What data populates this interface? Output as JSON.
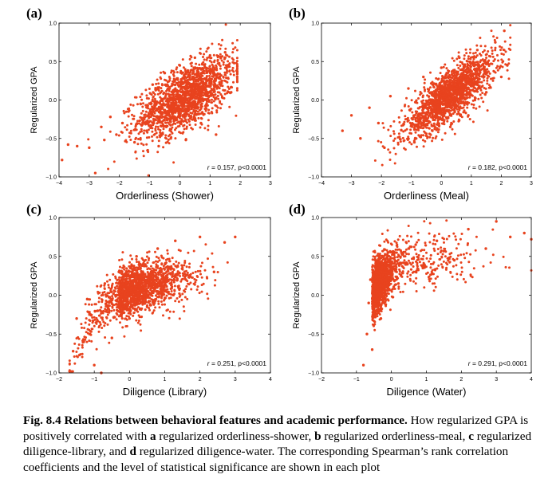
{
  "chart_data": [
    {
      "type": "scatter",
      "panel": "(a)",
      "xlabel": "Orderliness (Shower)",
      "ylabel": "Regularized GPA",
      "xlim": [
        -4,
        3
      ],
      "ylim": [
        -1.0,
        1.0
      ],
      "xticks": [
        "−4",
        "−3",
        "−2",
        "−1",
        "0",
        "1",
        "2",
        "3"
      ],
      "yticks": [
        "1.0",
        "0.5",
        "0.0",
        "−0.5",
        "−1.0"
      ],
      "annotation_r": "r",
      "annotation_text": " = 0.157, p<0.0001",
      "color": "#e8431e",
      "points": [
        [
          -3.9,
          -0.78
        ],
        [
          -3.7,
          -0.58
        ],
        [
          -3.4,
          -0.6
        ],
        [
          -3.0,
          -0.62
        ],
        [
          -2.8,
          -0.95
        ],
        [
          -2.6,
          -0.35
        ],
        [
          -2.5,
          -0.52
        ],
        [
          -2.3,
          -0.22
        ],
        [
          -2.1,
          -0.45
        ],
        [
          -1.9,
          -0.3
        ],
        [
          -1.7,
          -0.15
        ],
        [
          -1.5,
          -0.55
        ],
        [
          -1.3,
          -0.05
        ],
        [
          -1.1,
          -0.4
        ],
        [
          -0.9,
          0.2
        ],
        [
          -0.7,
          -0.6
        ],
        [
          -0.5,
          0.35
        ],
        [
          -0.3,
          -0.5
        ],
        [
          0.0,
          0.45
        ],
        [
          0.2,
          -0.52
        ],
        [
          0.5,
          0.55
        ],
        [
          0.7,
          -0.3
        ],
        [
          1.0,
          0.58
        ],
        [
          1.2,
          -0.45
        ],
        [
          1.5,
          0.62
        ],
        [
          1.7,
          0.1
        ],
        [
          1.8,
          0.48
        ],
        [
          1.9,
          0.3
        ]
      ]
    },
    {
      "type": "scatter",
      "panel": "(b)",
      "xlabel": "Orderliness (Meal)",
      "ylabel": "Regularized GPA",
      "xlim": [
        -4,
        3
      ],
      "ylim": [
        -1.0,
        1.0
      ],
      "xticks": [
        "−4",
        "−3",
        "−2",
        "−1",
        "0",
        "1",
        "2",
        "3"
      ],
      "yticks": [
        "1.0",
        "0.5",
        "0.0",
        "−0.5",
        "−1.0"
      ],
      "annotation_r": "r",
      "annotation_text": " = 0.182, p<0.0001",
      "color": "#e8431e",
      "points": [
        [
          -3.3,
          -0.4
        ],
        [
          -3.0,
          -0.2
        ],
        [
          -2.7,
          -0.5
        ],
        [
          -2.4,
          -0.1
        ],
        [
          -2.1,
          -0.3
        ],
        [
          -1.9,
          -0.62
        ],
        [
          -1.7,
          0.05
        ],
        [
          -1.4,
          -0.48
        ],
        [
          -1.1,
          0.15
        ],
        [
          -0.9,
          -0.55
        ],
        [
          -0.6,
          0.3
        ],
        [
          -0.3,
          -0.4
        ],
        [
          0.0,
          0.42
        ],
        [
          0.3,
          -0.35
        ],
        [
          0.6,
          0.55
        ],
        [
          0.9,
          -0.2
        ],
        [
          1.2,
          0.65
        ],
        [
          1.5,
          0.1
        ],
        [
          1.8,
          0.75
        ],
        [
          2.0,
          0.3
        ],
        [
          2.1,
          0.9
        ],
        [
          2.2,
          0.45
        ]
      ]
    },
    {
      "type": "scatter",
      "panel": "(c)",
      "xlabel": "Diligence (Library)",
      "ylabel": "Regularized GPA",
      "xlim": [
        -2,
        4
      ],
      "ylim": [
        -1.0,
        1.0
      ],
      "xticks": [
        "−2",
        "−1",
        "0",
        "1",
        "2",
        "3",
        "4"
      ],
      "yticks": [
        "1.0",
        "0.5",
        "0.0",
        "−0.5",
        "−1.0"
      ],
      "annotation_r": "r",
      "annotation_text": " = 0.251, p<0.0001",
      "color": "#e8431e",
      "points": [
        [
          -1.6,
          -0.72
        ],
        [
          -1.5,
          -0.3
        ],
        [
          -1.3,
          -0.6
        ],
        [
          -1.2,
          -0.05
        ],
        [
          -1.0,
          -0.9
        ],
        [
          -0.9,
          -0.2
        ],
        [
          -0.8,
          -1.0
        ],
        [
          -0.7,
          0.15
        ],
        [
          -0.5,
          -0.55
        ],
        [
          -0.3,
          0.3
        ],
        [
          0.0,
          -0.3
        ],
        [
          0.2,
          0.5
        ],
        [
          0.5,
          -0.15
        ],
        [
          0.8,
          0.6
        ],
        [
          1.0,
          0.05
        ],
        [
          1.3,
          0.7
        ],
        [
          1.6,
          0.2
        ],
        [
          2.0,
          0.75
        ],
        [
          2.4,
          0.3
        ],
        [
          2.7,
          0.68
        ],
        [
          3.0,
          0.75
        ]
      ]
    },
    {
      "type": "scatter",
      "panel": "(d)",
      "xlabel": "Diligence (Water)",
      "ylabel": "Regularized GPA",
      "xlim": [
        -2,
        4
      ],
      "ylim": [
        -1.0,
        1.0
      ],
      "xticks": [
        "−2",
        "−1",
        "0",
        "1",
        "2",
        "3",
        "4"
      ],
      "yticks": [
        "1.0",
        "0.5",
        "0.0",
        "−0.5",
        "−1.0"
      ],
      "annotation_r": "r",
      "annotation_text": " = 0.291, p<0.0001",
      "color": "#e8431e",
      "points": [
        [
          -0.8,
          -0.9
        ],
        [
          -0.7,
          -0.5
        ],
        [
          -0.65,
          -0.1
        ],
        [
          -0.6,
          0.2
        ],
        [
          -0.55,
          -0.7
        ],
        [
          -0.45,
          0.45
        ],
        [
          -0.3,
          -0.3
        ],
        [
          -0.1,
          0.55
        ],
        [
          0.2,
          0.15
        ],
        [
          0.5,
          0.6
        ],
        [
          0.9,
          0.35
        ],
        [
          1.3,
          0.7
        ],
        [
          1.8,
          0.45
        ],
        [
          2.2,
          0.85
        ],
        [
          2.7,
          0.6
        ],
        [
          3.0,
          0.95
        ],
        [
          3.4,
          0.75
        ],
        [
          3.8,
          0.8
        ],
        [
          4.0,
          0.72
        ]
      ]
    }
  ],
  "caption": {
    "label": "Fig. 8.4",
    "title": "Relations between behavioral features and academic performance.",
    "p1": " How regularized GPA is positively correlated with ",
    "a": "a",
    "p2": " regularized orderliness-shower, ",
    "b": "b",
    "p3": " regularized orderliness-meal, ",
    "c": "c",
    "p4": " regularized diligence-library, and ",
    "d": "d",
    "p5": " regularized diligence-water. The corresponding Spearman’s rank correlation coefficients and the level of statistical significance are shown in each plot"
  }
}
